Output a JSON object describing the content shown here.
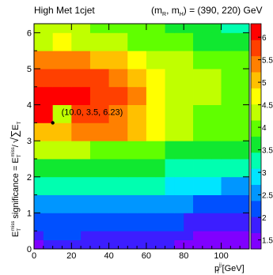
{
  "chart_data": {
    "type": "heatmap",
    "title_left": "High Met 1cjet",
    "title_right": "(m_R, m_H) = (390, 220) GeV",
    "title_right_parts": {
      "prefix": "(m",
      "sub1": "R",
      "mid": ", m",
      "sub2": "H",
      "suffix": ") = (390, 220) GeV"
    },
    "xlabel": {
      "base": "p",
      "sup": "jj",
      "sub": "T",
      "unit": " [GeV]"
    },
    "ylabel": "E_T^miss significance = E_T^miss / sqrt(sum E_T)",
    "ylabel_parts": {
      "lead": "E",
      "sub": "T",
      "sup": "miss",
      "text": " significance = E",
      "sub2": "T",
      "sup2": "miss",
      "slash": "/",
      "sum_sub": "T",
      "sum_label": "E"
    },
    "x_range": [
      0,
      115
    ],
    "y_range": [
      0,
      6.25
    ],
    "x_ticks": [
      0,
      20,
      40,
      60,
      80,
      100
    ],
    "y_ticks": [
      0,
      1,
      2,
      3,
      4,
      5,
      6
    ],
    "x_edges": [
      0,
      5,
      10,
      15,
      20,
      25,
      30,
      35,
      40,
      45,
      50,
      55,
      60,
      65,
      70,
      75,
      80,
      85,
      90,
      95,
      100,
      105,
      110,
      115
    ],
    "y_edges": [
      0,
      0.25,
      0.5,
      1.0,
      1.5,
      2.0,
      2.5,
      3.0,
      3.5,
      4.0,
      4.5,
      5.0,
      5.5,
      6.0,
      6.25
    ],
    "values": [
      [
        1.5,
        1.9,
        2.0,
        2.0,
        2.0,
        2.0,
        1.9,
        1.9,
        1.9,
        1.9,
        1.9,
        1.9,
        1.9,
        1.9,
        1.7,
        1.5,
        1.5,
        1.5,
        1.5,
        1.5,
        1.5,
        1.5,
        1.5
      ],
      [
        2.0,
        2.1,
        2.1,
        2.1,
        2.1,
        2.0,
        2.0,
        2.0,
        2.0,
        2.0,
        2.0,
        2.0,
        1.9,
        1.9,
        1.9,
        1.8,
        1.7,
        1.6,
        1.5,
        1.5,
        1.5,
        1.5,
        1.5
      ],
      [
        2.3,
        2.3,
        2.3,
        2.3,
        2.2,
        2.2,
        2.2,
        2.1,
        2.1,
        2.1,
        2.1,
        2.1,
        2.1,
        2.1,
        2.1,
        2.1,
        2.0,
        2.0,
        2.0,
        1.9,
        1.9,
        1.9,
        1.9
      ],
      [
        2.7,
        2.7,
        2.7,
        2.7,
        2.6,
        2.6,
        2.6,
        2.5,
        2.5,
        2.5,
        2.5,
        2.5,
        2.5,
        2.5,
        2.5,
        2.5,
        2.5,
        2.3,
        2.3,
        2.3,
        2.3,
        2.3,
        2.3
      ],
      [
        3.3,
        3.3,
        3.3,
        3.3,
        3.3,
        3.3,
        3.2,
        3.2,
        3.2,
        3.1,
        3.1,
        3.1,
        3.1,
        3.1,
        2.9,
        2.9,
        2.9,
        2.8,
        2.8,
        2.8,
        2.7,
        2.7,
        2.7
      ],
      [
        3.7,
        3.7,
        3.6,
        3.6,
        3.6,
        3.6,
        3.6,
        3.6,
        3.6,
        3.6,
        3.6,
        3.5,
        3.5,
        3.5,
        3.4,
        3.4,
        3.4,
        3.3,
        3.3,
        3.3,
        3.1,
        3.1,
        3.1
      ],
      [
        4.4,
        4.4,
        4.3,
        4.3,
        4.2,
        4.2,
        4.0,
        4.0,
        4.1,
        4.1,
        4.0,
        4.0,
        4.0,
        4.0,
        3.7,
        3.7,
        3.7,
        3.6,
        3.6,
        3.6,
        3.6,
        3.6,
        3.6
      ],
      [
        5.0,
        5.0,
        5.0,
        5.0,
        5.5,
        5.5,
        5.3,
        5.3,
        5.3,
        5.3,
        5.0,
        5.0,
        4.6,
        4.6,
        4.2,
        4.2,
        4.2,
        4.0,
        4.0,
        4.0,
        3.9,
        3.9,
        3.9
      ],
      [
        6.0,
        6.0,
        4.5,
        4.5,
        5.8,
        5.8,
        5.6,
        5.6,
        5.5,
        5.5,
        5.0,
        5.0,
        4.6,
        4.6,
        4.3,
        4.3,
        4.3,
        4.0,
        4.0,
        4.0,
        3.8,
        3.8,
        3.8
      ],
      [
        6.1,
        6.1,
        6.2,
        6.2,
        6.0,
        6.0,
        5.9,
        5.9,
        5.7,
        5.7,
        5.3,
        5.3,
        4.8,
        4.8,
        4.5,
        4.5,
        4.5,
        4.3,
        4.3,
        4.3,
        4.0,
        4.0,
        4.0
      ],
      [
        5.9,
        5.9,
        5.9,
        5.9,
        5.8,
        5.8,
        5.6,
        5.6,
        5.4,
        5.4,
        5.1,
        5.1,
        4.6,
        4.6,
        4.5,
        4.5,
        4.5,
        4.2,
        4.2,
        4.2,
        4.1,
        4.1,
        4.1
      ],
      [
        5.4,
        5.4,
        5.5,
        5.5,
        5.4,
        5.4,
        5.2,
        5.2,
        4.9,
        4.9,
        4.6,
        4.6,
        4.4,
        4.4,
        4.2,
        4.2,
        4.2,
        4.0,
        4.0,
        4.0,
        3.8,
        3.8,
        3.8
      ],
      [
        4.4,
        4.4,
        4.6,
        4.6,
        4.4,
        4.4,
        4.3,
        4.3,
        4.2,
        4.2,
        4.0,
        4.0,
        4.0,
        4.0,
        3.8,
        3.8,
        3.8,
        3.7,
        3.7,
        3.7,
        3.6,
        3.6,
        3.6
      ],
      [
        4.3,
        4.3,
        4.3,
        4.3,
        4.2,
        4.2,
        4.1,
        4.1,
        4.0,
        4.0,
        3.9,
        3.9,
        3.9,
        3.9,
        3.7,
        3.7,
        3.7,
        3.6,
        3.6,
        3.6,
        3.4,
        3.4,
        3.4
      ]
    ],
    "z_range": [
      1.3,
      6.3
    ],
    "z_ticks": [
      1.5,
      2,
      2.5,
      3,
      3.5,
      4,
      4.5,
      5,
      5.5,
      6
    ],
    "colorbar_colors": [
      "#8000ff",
      "#3c1eff",
      "#0050ff",
      "#0096ff",
      "#00e5ff",
      "#00ffb0",
      "#10e830",
      "#60ff00",
      "#c0ff00",
      "#ffff00",
      "#ffc000",
      "#ff8000",
      "#ff4000",
      "#ff0000"
    ],
    "marker": {
      "x": 10.0,
      "y": 3.5,
      "label": "(10.0, 3.5, 6.23)"
    },
    "grid": false,
    "legend": "colorbar-right"
  }
}
